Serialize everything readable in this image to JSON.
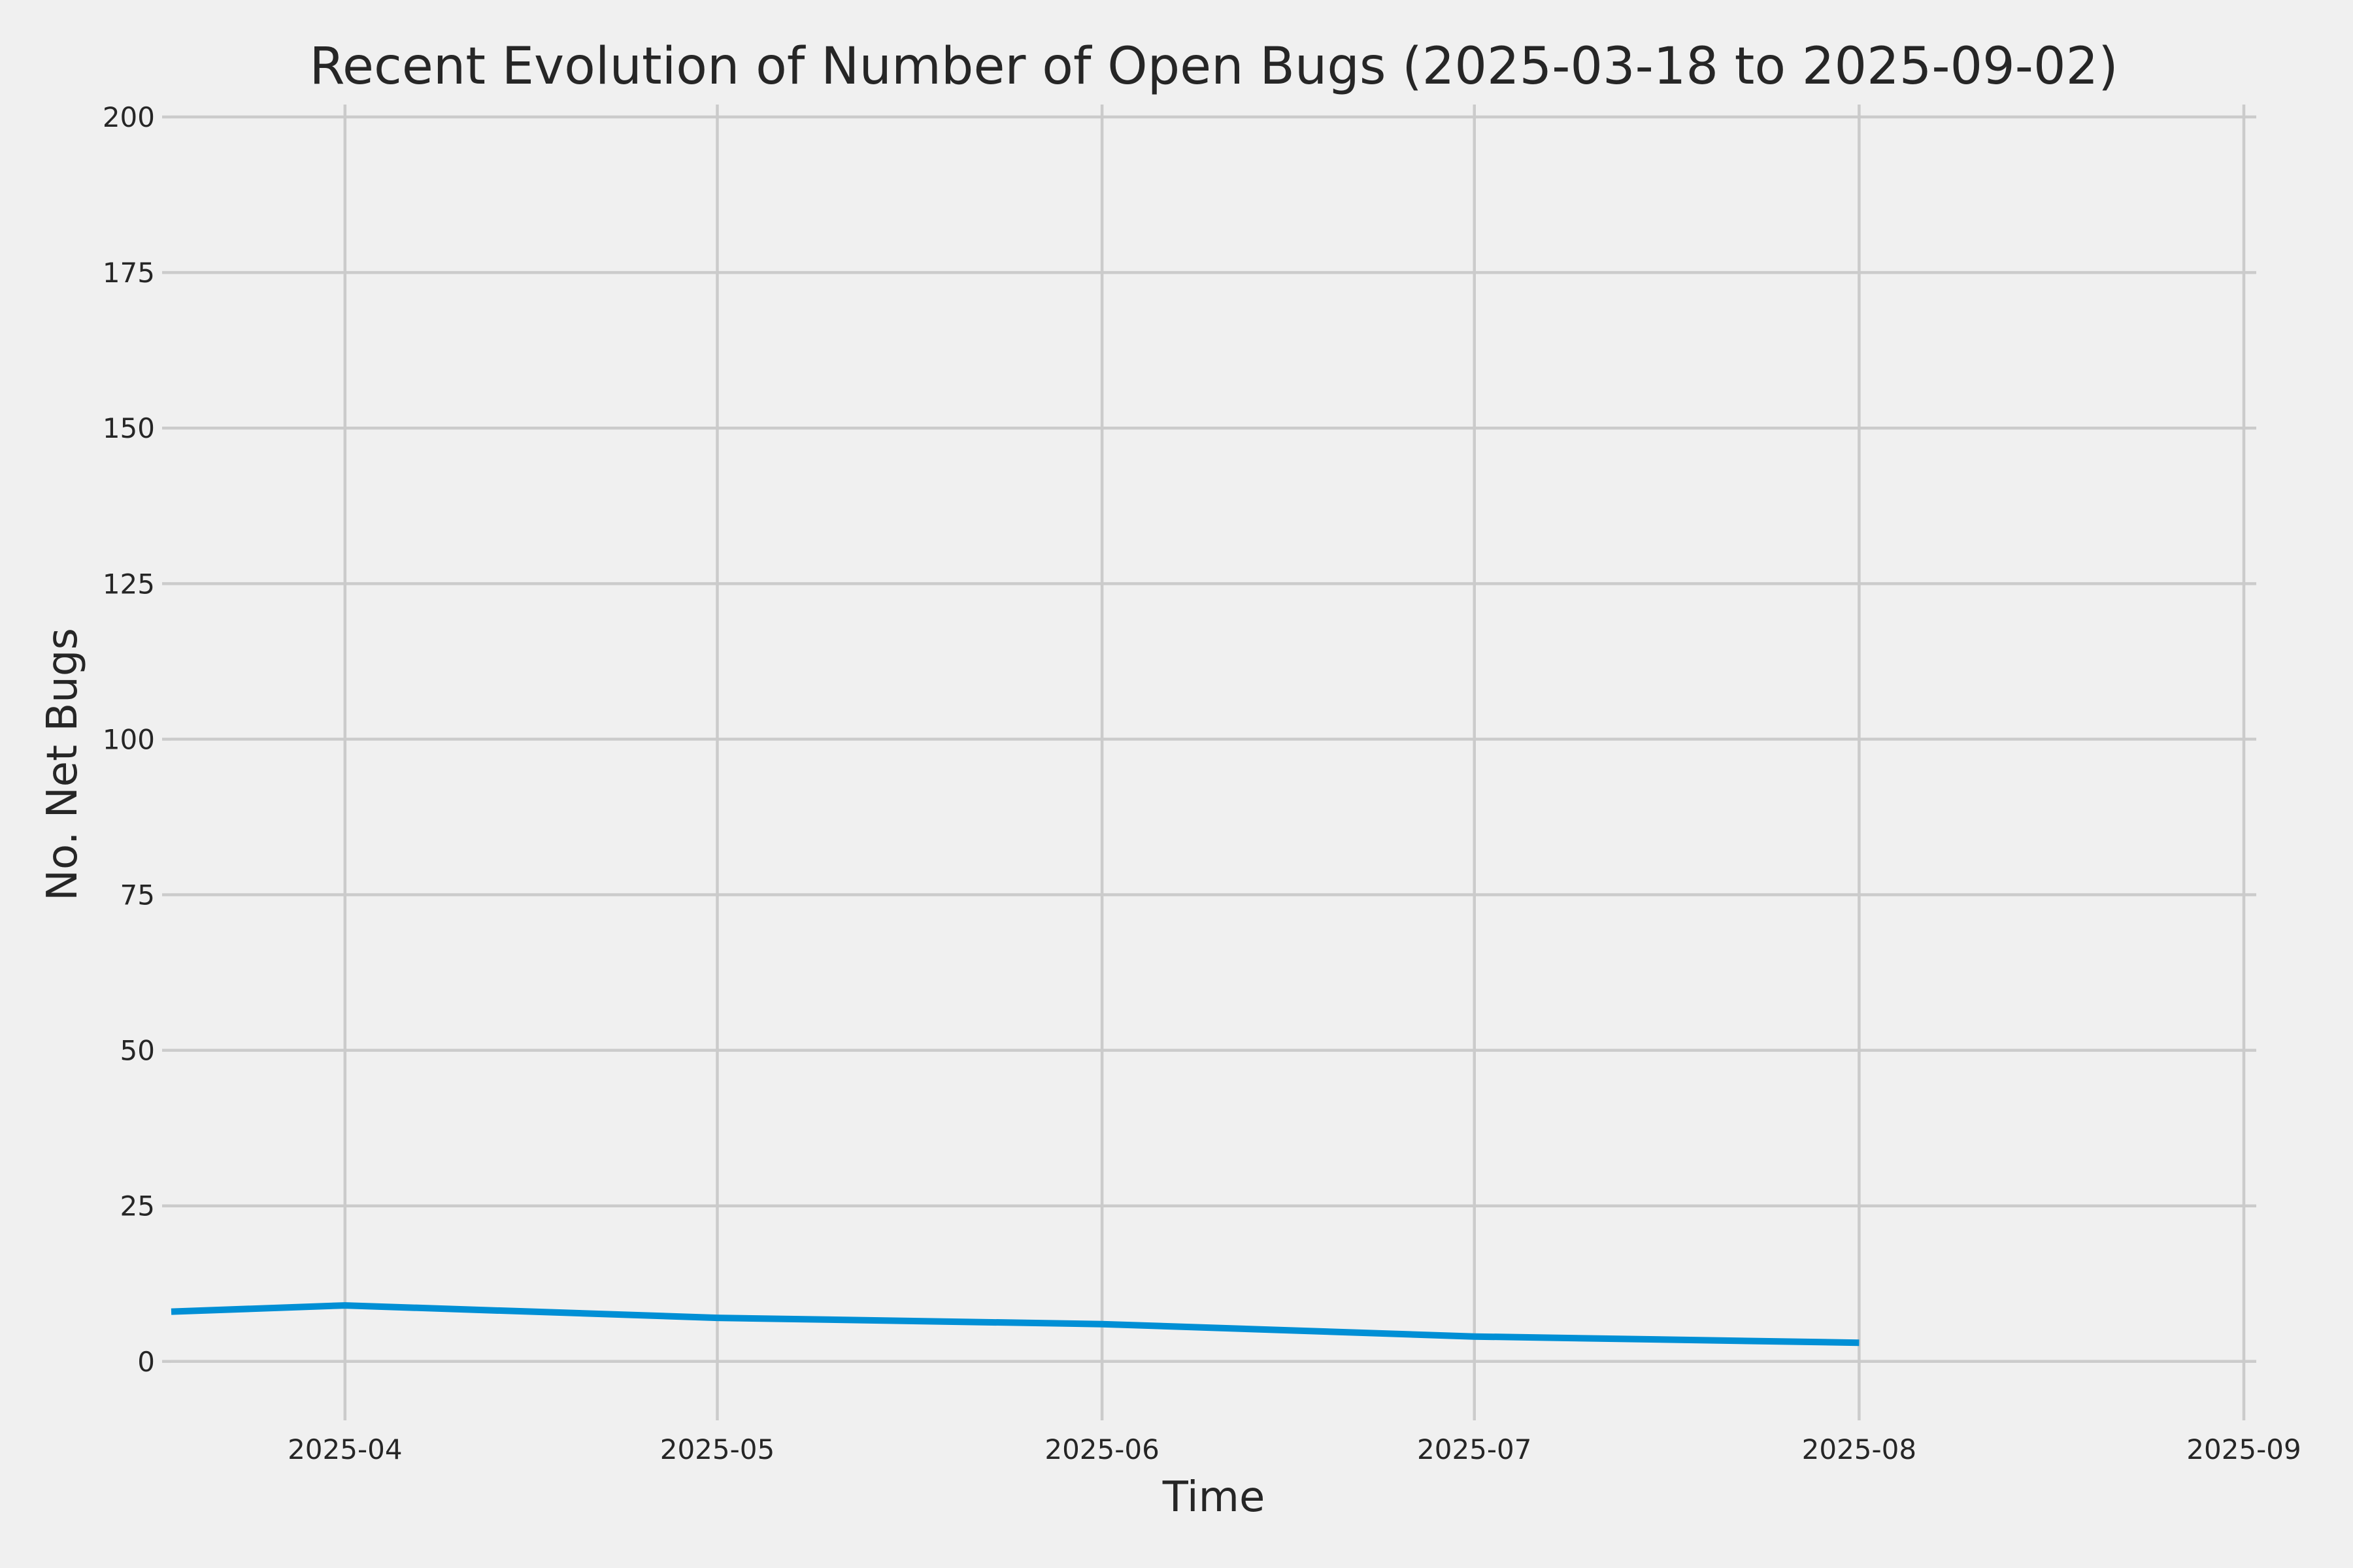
{
  "chart_data": {
    "type": "line",
    "title": "Recent Evolution of Number of Open Bugs (2025-03-18 to 2025-09-02)",
    "xlabel": "Time",
    "ylabel": "No. Net Bugs",
    "x_type": "date",
    "xlim": [
      "2025-03-18",
      "2025-09-02"
    ],
    "ylim": [
      -8,
      202
    ],
    "x_ticks": [
      "2025-04",
      "2025-05",
      "2025-06",
      "2025-07",
      "2025-08",
      "2025-09"
    ],
    "y_ticks": [
      0,
      25,
      50,
      75,
      100,
      125,
      150,
      175,
      200
    ],
    "grid": true,
    "legend": "none",
    "series": [
      {
        "color": "#008fd5",
        "x": [
          "2025-03-18",
          "2025-04-01",
          "2025-05-01",
          "2025-06-01",
          "2025-07-01",
          "2025-08-01"
        ],
        "y": [
          8,
          9,
          7,
          6,
          4,
          3
        ]
      }
    ]
  }
}
